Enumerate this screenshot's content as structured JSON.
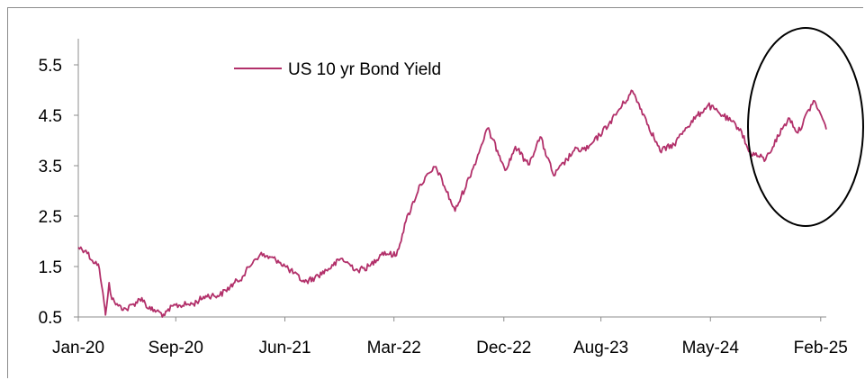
{
  "chart_data": {
    "type": "line",
    "title": "",
    "xlabel": "",
    "ylabel": "",
    "ylim": [
      0.5,
      6.0
    ],
    "y_ticks": [
      "0.5",
      "1.5",
      "2.5",
      "3.5",
      "4.5",
      "5.5"
    ],
    "x_tick_labels": [
      "Jan-20",
      "Sep-20",
      "Jun-21",
      "Mar-22",
      "Dec-22",
      "Aug-23",
      "May-24",
      "Feb-25"
    ],
    "x_tick_dates": [
      "2020-01-01",
      "2020-09-01",
      "2021-06-01",
      "2022-03-01",
      "2022-12-01",
      "2023-08-01",
      "2024-05-01",
      "2025-02-01"
    ],
    "x_range": [
      "2020-01-01",
      "2025-02-15"
    ],
    "legend": {
      "position": "top-center",
      "label": "US 10 yr Bond Yield"
    },
    "grid": false,
    "series": [
      {
        "name": "US 10 yr Bond Yield",
        "color": "#b2306a",
        "points": [
          [
            "2020-01-01",
            1.88
          ],
          [
            "2020-01-20",
            1.82
          ],
          [
            "2020-02-05",
            1.62
          ],
          [
            "2020-02-20",
            1.55
          ],
          [
            "2020-02-28",
            1.15
          ],
          [
            "2020-03-06",
            0.75
          ],
          [
            "2020-03-09",
            0.54
          ],
          [
            "2020-03-18",
            1.18
          ],
          [
            "2020-03-25",
            0.85
          ],
          [
            "2020-04-10",
            0.72
          ],
          [
            "2020-05-01",
            0.65
          ],
          [
            "2020-06-08",
            0.88
          ],
          [
            "2020-06-25",
            0.66
          ],
          [
            "2020-07-15",
            0.62
          ],
          [
            "2020-08-04",
            0.53
          ],
          [
            "2020-08-25",
            0.72
          ],
          [
            "2020-10-15",
            0.76
          ],
          [
            "2020-11-15",
            0.92
          ],
          [
            "2020-12-20",
            0.93
          ],
          [
            "2021-01-15",
            1.1
          ],
          [
            "2021-02-15",
            1.3
          ],
          [
            "2021-03-15",
            1.62
          ],
          [
            "2021-03-31",
            1.74
          ],
          [
            "2021-05-15",
            1.62
          ],
          [
            "2021-06-10",
            1.45
          ],
          [
            "2021-07-20",
            1.19
          ],
          [
            "2021-08-15",
            1.28
          ],
          [
            "2021-09-30",
            1.52
          ],
          [
            "2021-10-20",
            1.66
          ],
          [
            "2021-12-01",
            1.42
          ],
          [
            "2021-12-31",
            1.51
          ],
          [
            "2022-01-31",
            1.78
          ],
          [
            "2022-03-07",
            1.72
          ],
          [
            "2022-03-31",
            2.4
          ],
          [
            "2022-05-06",
            3.13
          ],
          [
            "2022-06-14",
            3.48
          ],
          [
            "2022-08-01",
            2.6
          ],
          [
            "2022-09-15",
            3.45
          ],
          [
            "2022-10-21",
            4.24
          ],
          [
            "2022-11-15",
            3.8
          ],
          [
            "2022-12-07",
            3.42
          ],
          [
            "2022-12-30",
            3.88
          ],
          [
            "2023-01-31",
            3.52
          ],
          [
            "2023-03-02",
            4.07
          ],
          [
            "2023-04-05",
            3.3
          ],
          [
            "2023-05-26",
            3.8
          ],
          [
            "2023-06-30",
            3.84
          ],
          [
            "2023-08-21",
            4.33
          ],
          [
            "2023-10-19",
            4.98
          ],
          [
            "2023-11-10",
            4.62
          ],
          [
            "2023-12-27",
            3.79
          ],
          [
            "2024-01-31",
            3.92
          ],
          [
            "2024-02-29",
            4.25
          ],
          [
            "2024-04-25",
            4.7
          ],
          [
            "2024-05-31",
            4.5
          ],
          [
            "2024-07-15",
            4.23
          ],
          [
            "2024-08-05",
            3.78
          ],
          [
            "2024-09-16",
            3.62
          ],
          [
            "2024-10-31",
            4.28
          ],
          [
            "2024-11-15",
            4.44
          ],
          [
            "2024-12-06",
            4.15
          ],
          [
            "2025-01-14",
            4.79
          ],
          [
            "2025-01-31",
            4.54
          ],
          [
            "2025-02-15",
            4.22
          ]
        ]
      }
    ]
  }
}
